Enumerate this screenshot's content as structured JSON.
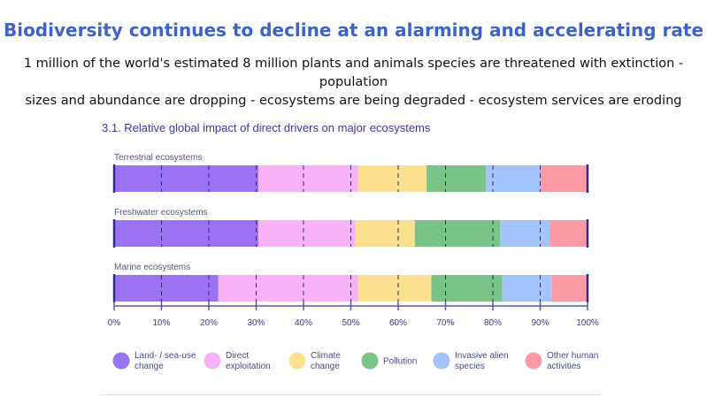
{
  "page": {
    "title": "Biodiversity continues to decline at an alarming and accelerating rate",
    "subtitle_line1": "1 million of the world's estimated 8 million plants and animals species are threatened with extinction - population",
    "subtitle_line2": "sizes and abundance are dropping - ecosystems are being degraded - ecosystem services are eroding"
  },
  "chart_data": {
    "type": "bar",
    "orientation": "horizontal-stacked-100",
    "title": "3.1.  Relative global impact of direct drivers on major ecosystems",
    "categories": [
      "Terrestrial ecosystems",
      "Freshwater ecosystems",
      "Marine ecosystems"
    ],
    "series": [
      {
        "name": "Land- / sea-use change",
        "color": "#9a73f2",
        "values": [
          30.5,
          30.5,
          22
        ]
      },
      {
        "name": "Direct exploitation",
        "color": "#f8b2f7",
        "values": [
          21,
          20.5,
          29.5
        ]
      },
      {
        "name": "Climate change",
        "color": "#fde08f",
        "values": [
          14.5,
          12.5,
          15.5
        ]
      },
      {
        "name": "Pollution",
        "color": "#7bc487",
        "values": [
          12.5,
          18,
          15
        ]
      },
      {
        "name": "Invasive alien species",
        "color": "#a3c4fb",
        "values": [
          11.5,
          10.5,
          10.5
        ]
      },
      {
        "name": "Other human activities",
        "color": "#fb9aa4",
        "values": [
          10,
          8,
          7.5
        ]
      }
    ],
    "xlim": [
      0,
      100
    ],
    "xticks": [
      "0%",
      "10%",
      "20%",
      "30%",
      "40%",
      "50%",
      "60%",
      "70%",
      "80%",
      "90%",
      "100%"
    ],
    "grid": "dashed vertical",
    "legend_position": "bottom",
    "legend": [
      {
        "lines": [
          "Land- / sea-use",
          "change"
        ],
        "color": "#9a73f2"
      },
      {
        "lines": [
          "Direct",
          "exploitation"
        ],
        "color": "#f8b2f7"
      },
      {
        "lines": [
          "Climate",
          "change"
        ],
        "color": "#fde08f"
      },
      {
        "lines": [
          "Pollution"
        ],
        "color": "#7bc487"
      },
      {
        "lines": [
          "Invasive alien",
          "species"
        ],
        "color": "#a3c4fb"
      },
      {
        "lines": [
          "Other human",
          "activities"
        ],
        "color": "#fb9aa4"
      }
    ]
  }
}
